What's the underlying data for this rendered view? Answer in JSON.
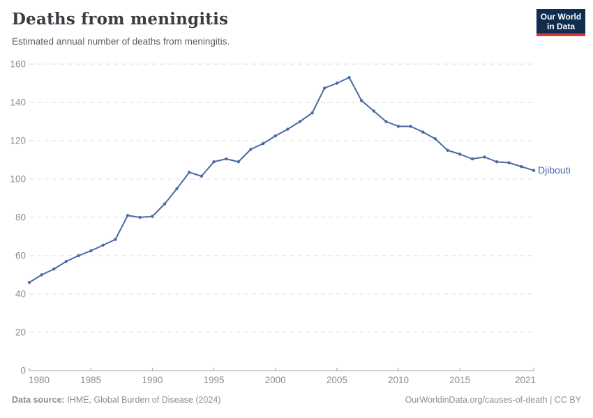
{
  "header": {
    "title": "Deaths from meningitis",
    "subtitle": "Estimated annual number of deaths from meningitis.",
    "logo": {
      "line1": "Our World",
      "line2": "in Data",
      "bg_color": "#102d50",
      "accent_color": "#d93a34"
    }
  },
  "footer": {
    "source_label": "Data source:",
    "source_text": " IHME, Global Burden of Disease (2024)",
    "credit": "OurWorldinData.org/causes-of-death | CC BY"
  },
  "chart_data": {
    "type": "line",
    "title": "Deaths from meningitis",
    "subtitle": "Estimated annual number of deaths from meningitis.",
    "entity": "Djibouti",
    "xlabel": "",
    "ylabel": "",
    "xlim": [
      1980,
      2021
    ],
    "ylim": [
      0,
      160
    ],
    "grid": true,
    "x_ticks": [
      1980,
      1985,
      1990,
      1995,
      2000,
      2005,
      2010,
      2015,
      2021
    ],
    "y_ticks": [
      0,
      20,
      40,
      60,
      80,
      100,
      120,
      140,
      160
    ],
    "line_color": "#4a69a5",
    "series": [
      {
        "name": "Djibouti",
        "x": [
          1980,
          1981,
          1982,
          1983,
          1984,
          1985,
          1986,
          1987,
          1988,
          1989,
          1990,
          1991,
          1992,
          1993,
          1994,
          1995,
          1996,
          1997,
          1998,
          1999,
          2000,
          2001,
          2002,
          2003,
          2004,
          2005,
          2006,
          2007,
          2008,
          2009,
          2010,
          2011,
          2012,
          2013,
          2014,
          2015,
          2016,
          2017,
          2018,
          2019,
          2020,
          2021
        ],
        "values": [
          46,
          50,
          53,
          57,
          60,
          62.5,
          65.5,
          68.5,
          81,
          80,
          80.5,
          87,
          95,
          103.5,
          101.5,
          109,
          110.5,
          109,
          115.5,
          118.5,
          122.5,
          126,
          130,
          134.5,
          147.5,
          150,
          153,
          141,
          135.5,
          130,
          127.5,
          127.5,
          124.5,
          121,
          115,
          113,
          110.5,
          111.5,
          109,
          108.5,
          106.5,
          104.5
        ]
      }
    ]
  }
}
